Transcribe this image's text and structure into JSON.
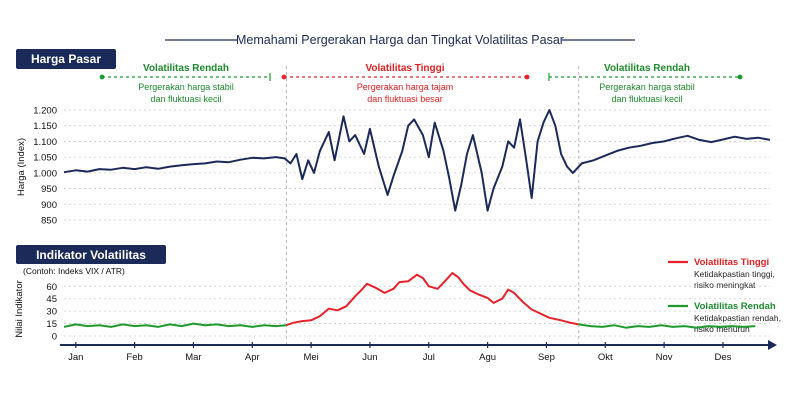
{
  "colors": {
    "navy": "#1c2a5a",
    "red": "#e8222a",
    "green": "#1e9a2e",
    "grid": "#cccccc",
    "divider": "#a8aec0"
  },
  "header": {
    "title": "Memahami Pergerakan Harga dan Tingkat Volatilitas Pasar"
  },
  "top_panel": {
    "label": "Harga Pasar",
    "ylabel": "Harga (Index)",
    "yticks": [
      "1.200",
      "1.150",
      "1.100",
      "1.050",
      "1.000",
      "950",
      "900",
      "850"
    ],
    "segments": [
      {
        "title": "Volatilitas Rendah",
        "desc1": "Pergerakan harga stabil",
        "desc2": "dan fluktuasi kecil",
        "tone": "green"
      },
      {
        "title": "Volatilitas Tinggi",
        "desc1": "Pergerakan harga tajam",
        "desc2": "dan fluktuasi besar",
        "tone": "red"
      },
      {
        "title": "Volatilitas Rendah",
        "desc1": "Pergerakan harga stabil",
        "desc2": "dan fluktuasi kecil",
        "tone": "green"
      }
    ]
  },
  "bottom_panel": {
    "label": "Indikator Volatilitas",
    "subtitle": "(Contoh: Indeks VIX / ATR)",
    "ylabel": "Nilai Indikator",
    "yticks": [
      "60",
      "45",
      "30",
      "15",
      "0"
    ],
    "legend": [
      {
        "title": "Volatilitas Tinggi",
        "desc1": "Ketidakpastian tinggi,",
        "desc2": "risiko meningkat",
        "tone": "red"
      },
      {
        "title": "Volatilitas Rendah",
        "desc1": "Ketidakpastian rendah,",
        "desc2": "risiko menurun",
        "tone": "green"
      }
    ]
  },
  "months": [
    "Jan",
    "Feb",
    "Mar",
    "Apr",
    "Mei",
    "Jun",
    "Jul",
    "Agu",
    "Sep",
    "Okt",
    "Nov",
    "Des"
  ],
  "chart_data": [
    {
      "type": "line",
      "title": "Harga Pasar",
      "ylabel": "Harga (Index)",
      "ylim": [
        850,
        1200
      ],
      "x_unit": "month",
      "series": [
        {
          "points": [
            [
              0,
              1002
            ],
            [
              0.2,
              1008
            ],
            [
              0.4,
              1004
            ],
            [
              0.6,
              1012
            ],
            [
              0.8,
              1010
            ],
            [
              1.0,
              1016
            ],
            [
              1.2,
              1012
            ],
            [
              1.4,
              1018
            ],
            [
              1.6,
              1013
            ],
            [
              1.8,
              1020
            ],
            [
              2.0,
              1024
            ],
            [
              2.2,
              1028
            ],
            [
              2.4,
              1030
            ],
            [
              2.6,
              1036
            ],
            [
              2.8,
              1034
            ],
            [
              3.0,
              1042
            ],
            [
              3.2,
              1048
            ],
            [
              3.4,
              1046
            ],
            [
              3.6,
              1050
            ],
            [
              3.75,
              1046
            ],
            [
              3.85,
              1030
            ],
            [
              3.95,
              1060
            ],
            [
              4.05,
              980
            ],
            [
              4.15,
              1040
            ],
            [
              4.25,
              1000
            ],
            [
              4.35,
              1070
            ],
            [
              4.5,
              1130
            ],
            [
              4.6,
              1040
            ],
            [
              4.75,
              1180
            ],
            [
              4.85,
              1100
            ],
            [
              4.95,
              1120
            ],
            [
              5.1,
              1060
            ],
            [
              5.2,
              1140
            ],
            [
              5.35,
              1020
            ],
            [
              5.5,
              930
            ],
            [
              5.6,
              990
            ],
            [
              5.75,
              1070
            ],
            [
              5.85,
              1150
            ],
            [
              5.95,
              1170
            ],
            [
              6.1,
              1120
            ],
            [
              6.2,
              1050
            ],
            [
              6.3,
              1160
            ],
            [
              6.45,
              1070
            ],
            [
              6.55,
              980
            ],
            [
              6.65,
              880
            ],
            [
              6.75,
              960
            ],
            [
              6.85,
              1060
            ],
            [
              6.95,
              1120
            ],
            [
              7.1,
              1000
            ],
            [
              7.2,
              880
            ],
            [
              7.3,
              950
            ],
            [
              7.45,
              1020
            ],
            [
              7.55,
              1100
            ],
            [
              7.65,
              1080
            ],
            [
              7.75,
              1170
            ],
            [
              7.85,
              1050
            ],
            [
              7.95,
              920
            ],
            [
              8.05,
              1100
            ],
            [
              8.15,
              1160
            ],
            [
              8.25,
              1200
            ],
            [
              8.35,
              1150
            ],
            [
              8.45,
              1060
            ],
            [
              8.55,
              1020
            ],
            [
              8.65,
              1000
            ],
            [
              8.8,
              1030
            ],
            [
              9.0,
              1040
            ],
            [
              9.2,
              1055
            ],
            [
              9.4,
              1070
            ],
            [
              9.6,
              1080
            ],
            [
              9.8,
              1086
            ],
            [
              10.0,
              1095
            ],
            [
              10.2,
              1100
            ],
            [
              10.4,
              1110
            ],
            [
              10.6,
              1118
            ],
            [
              10.8,
              1105
            ],
            [
              11.0,
              1098
            ],
            [
              11.2,
              1106
            ],
            [
              11.4,
              1115
            ],
            [
              11.6,
              1108
            ],
            [
              11.8,
              1112
            ],
            [
              12.0,
              1105
            ]
          ]
        }
      ]
    },
    {
      "type": "line",
      "title": "Indikator Volatilitas",
      "ylabel": "Nilai Indikator",
      "ylim": [
        0,
        70
      ],
      "x_unit": "month",
      "series": [
        {
          "name": "Volatilitas Rendah",
          "points": [
            [
              0,
              11
            ],
            [
              0.2,
              14
            ],
            [
              0.4,
              12
            ],
            [
              0.6,
              13
            ],
            [
              0.8,
              11
            ],
            [
              1.0,
              14
            ],
            [
              1.2,
              12
            ],
            [
              1.4,
              13
            ],
            [
              1.6,
              11
            ],
            [
              1.8,
              14
            ],
            [
              2.0,
              12
            ],
            [
              2.2,
              15
            ],
            [
              2.4,
              13
            ],
            [
              2.6,
              14
            ],
            [
              2.8,
              12
            ],
            [
              3.0,
              13
            ],
            [
              3.2,
              11
            ],
            [
              3.4,
              13
            ],
            [
              3.6,
              12
            ],
            [
              3.78,
              13
            ]
          ]
        },
        {
          "name": "Volatilitas Tinggi",
          "points": [
            [
              3.78,
              13
            ],
            [
              3.9,
              16
            ],
            [
              4.05,
              18
            ],
            [
              4.2,
              19
            ],
            [
              4.35,
              24
            ],
            [
              4.5,
              33
            ],
            [
              4.65,
              31
            ],
            [
              4.8,
              36
            ],
            [
              4.95,
              48
            ],
            [
              5.05,
              55
            ],
            [
              5.15,
              63
            ],
            [
              5.3,
              58
            ],
            [
              5.45,
              52
            ],
            [
              5.6,
              57
            ],
            [
              5.7,
              65
            ],
            [
              5.85,
              66
            ],
            [
              6.0,
              74
            ],
            [
              6.1,
              70
            ],
            [
              6.2,
              60
            ],
            [
              6.35,
              57
            ],
            [
              6.5,
              68
            ],
            [
              6.6,
              76
            ],
            [
              6.7,
              71
            ],
            [
              6.8,
              62
            ],
            [
              6.9,
              55
            ],
            [
              7.05,
              50
            ],
            [
              7.2,
              46
            ],
            [
              7.3,
              40
            ],
            [
              7.45,
              45
            ],
            [
              7.55,
              56
            ],
            [
              7.65,
              52
            ],
            [
              7.8,
              41
            ],
            [
              7.95,
              32
            ],
            [
              8.1,
              27
            ],
            [
              8.25,
              22
            ],
            [
              8.45,
              19
            ],
            [
              8.6,
              16
            ],
            [
              8.75,
              14
            ]
          ]
        },
        {
          "name": "Volatilitas Rendah",
          "points": [
            [
              8.75,
              14
            ],
            [
              8.95,
              12
            ],
            [
              9.15,
              11
            ],
            [
              9.35,
              13
            ],
            [
              9.55,
              10
            ],
            [
              9.75,
              12
            ],
            [
              9.95,
              11
            ],
            [
              10.15,
              13
            ],
            [
              10.35,
              11
            ],
            [
              10.55,
              12
            ],
            [
              10.75,
              10
            ],
            [
              10.95,
              12
            ],
            [
              11.15,
              11
            ],
            [
              11.35,
              12
            ],
            [
              11.55,
              11
            ],
            [
              11.75,
              12
            ]
          ]
        }
      ]
    }
  ]
}
